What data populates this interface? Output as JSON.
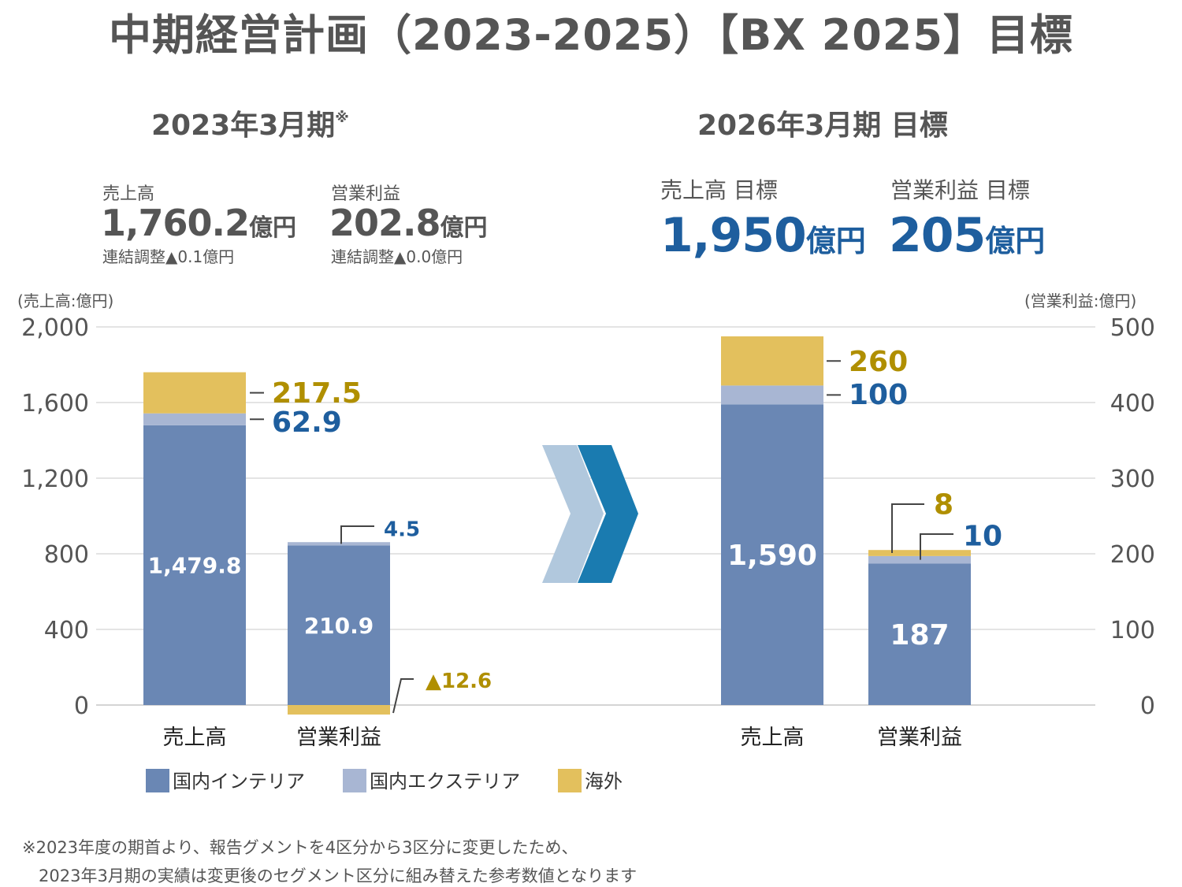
{
  "title": "中期経営計画（2023-2025）【BX 2025】目標",
  "left_panel": {
    "period": "2023年3月期",
    "period_mark": "※",
    "kpis": [
      {
        "label": "売上高",
        "value": "1,760.2",
        "unit": "億円",
        "sub": "連結調整▲0.1億円"
      },
      {
        "label": "営業利益",
        "value": "202.8",
        "unit": "億円",
        "sub": "連結調整▲0.0億円"
      }
    ]
  },
  "right_panel": {
    "period": "2026年3月期 目標",
    "kpis": [
      {
        "label": "売上高 目標",
        "value": "1,950",
        "unit": "億円"
      },
      {
        "label": "営業利益 目標",
        "value": "205",
        "unit": "億円"
      }
    ]
  },
  "chart_data": {
    "type": "bar",
    "stacked": true,
    "left_axis": {
      "label": "(売上高:億円)",
      "ylim": [
        0,
        2000
      ],
      "ticks": [
        "2,000",
        "1,600",
        "1,200",
        "800",
        "400",
        "0"
      ]
    },
    "right_axis": {
      "label": "(営業利益:億円)",
      "ylim": [
        0,
        500
      ],
      "ticks": [
        "500",
        "400",
        "300",
        "200",
        "100",
        "0"
      ]
    },
    "series": [
      {
        "name": "国内インテリア",
        "color": "#6a87b4"
      },
      {
        "name": "国内エクステリア",
        "color": "#a8b6d3"
      },
      {
        "name": "海外",
        "color": "#e3c05d"
      }
    ],
    "groups": [
      {
        "period": "2023年3月期",
        "bars": [
          {
            "category": "売上高",
            "axis": "left",
            "values": [
              1479.8,
              62.9,
              217.5
            ],
            "labels": [
              "1,479.8",
              "62.9",
              "217.5"
            ]
          },
          {
            "category": "営業利益",
            "axis": "right",
            "values": [
              210.9,
              4.5,
              -12.6
            ],
            "labels": [
              "210.9",
              "4.5",
              "▲12.6"
            ]
          }
        ]
      },
      {
        "period": "2026年3月期 目標",
        "bars": [
          {
            "category": "売上高",
            "axis": "left",
            "values": [
              1590,
              100,
              260
            ],
            "labels": [
              "1,590",
              "100",
              "260"
            ]
          },
          {
            "category": "営業利益",
            "axis": "right",
            "values": [
              187,
              10,
              8
            ],
            "labels": [
              "187",
              "10",
              "8"
            ]
          }
        ]
      }
    ]
  },
  "footnote": [
    "※2023年度の期首より、報告グメントを4区分から3区分に変更したため、",
    "　2023年3月期の実績は変更後のセグメント区分に組み替えた参考数値となります"
  ]
}
